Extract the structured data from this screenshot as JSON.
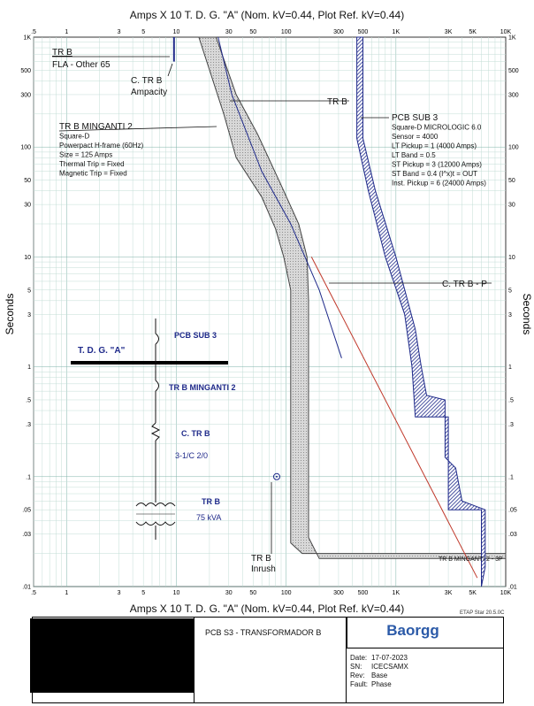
{
  "header": {
    "top_title": "Amps  X  10   T. D. G. \"A\" (Nom. kV=0.44, Plot Ref. kV=0.44)",
    "bottom_title": "Amps  X  10   T. D. G. \"A\" (Nom. kV=0.44, Plot Ref. kV=0.44)",
    "y_axis_label": "Seconds"
  },
  "chart_data": {
    "type": "line",
    "x_scale": "log",
    "y_scale": "log",
    "xlim": [
      0.5,
      10000
    ],
    "ylim": [
      0.01,
      1000
    ],
    "x_ticks": [
      {
        "v": 0.5,
        "label": ".5"
      },
      {
        "v": 1,
        "label": "1"
      },
      {
        "v": 3,
        "label": "3"
      },
      {
        "v": 5,
        "label": "5"
      },
      {
        "v": 10,
        "label": "10"
      },
      {
        "v": 30,
        "label": "30"
      },
      {
        "v": 50,
        "label": "50"
      },
      {
        "v": 100,
        "label": "100"
      },
      {
        "v": 300,
        "label": "300"
      },
      {
        "v": 500,
        "label": "500"
      },
      {
        "v": 1000,
        "label": "1K"
      },
      {
        "v": 3000,
        "label": "3K"
      },
      {
        "v": 5000,
        "label": "5K"
      },
      {
        "v": 10000,
        "label": "10K"
      }
    ],
    "y_ticks": [
      {
        "v": 0.01,
        "label": ".01"
      },
      {
        "v": 0.03,
        "label": ".03"
      },
      {
        "v": 0.05,
        "label": ".05"
      },
      {
        "v": 0.1,
        "label": ".1"
      },
      {
        "v": 0.3,
        "label": ".3"
      },
      {
        "v": 0.5,
        "label": ".5"
      },
      {
        "v": 1,
        "label": "1"
      },
      {
        "v": 3,
        "label": "3"
      },
      {
        "v": 5,
        "label": "5"
      },
      {
        "v": 10,
        "label": "10"
      },
      {
        "v": 30,
        "label": "30"
      },
      {
        "v": 50,
        "label": "50"
      },
      {
        "v": 100,
        "label": "100"
      },
      {
        "v": 300,
        "label": "300"
      },
      {
        "v": 500,
        "label": "500"
      },
      {
        "v": 1000,
        "label": "1K"
      }
    ],
    "grid": true,
    "series": [
      {
        "name": "TR B MINGANTI 2",
        "style": "band",
        "color": "#444444",
        "fill": "#cfcfcf",
        "left": [
          [
            16,
            1000
          ],
          [
            27,
            200
          ],
          [
            35,
            80
          ],
          [
            60,
            35
          ],
          [
            80,
            18
          ],
          [
            95,
            10
          ],
          [
            110,
            5
          ],
          [
            110,
            0.1
          ],
          [
            110,
            0.025
          ],
          [
            140,
            0.02
          ],
          [
            10000,
            0.02
          ]
        ],
        "right": [
          [
            23,
            1000
          ],
          [
            35,
            300
          ],
          [
            55,
            130
          ],
          [
            90,
            45
          ],
          [
            130,
            20
          ],
          [
            155,
            10
          ],
          [
            160,
            4
          ],
          [
            160,
            0.1
          ],
          [
            160,
            0.028
          ],
          [
            200,
            0.018
          ],
          [
            10000,
            0.018
          ]
        ]
      },
      {
        "name": "PCB SUB 3",
        "style": "hatched",
        "color": "#1f2a8a",
        "left": [
          [
            440,
            1000
          ],
          [
            440,
            120
          ],
          [
            560,
            40
          ],
          [
            800,
            10
          ],
          [
            1200,
            3
          ],
          [
            1400,
            1
          ],
          [
            1500,
            0.35
          ],
          [
            3000,
            0.35
          ],
          [
            3000,
            0.1
          ],
          [
            3000,
            0.05
          ],
          [
            6000,
            0.05
          ],
          [
            6000,
            0.01
          ]
        ],
        "right": [
          [
            500,
            1000
          ],
          [
            500,
            120
          ],
          [
            650,
            40
          ],
          [
            1000,
            10
          ],
          [
            1500,
            2.2
          ],
          [
            1700,
            1
          ],
          [
            1900,
            0.55
          ],
          [
            2800,
            0.5
          ],
          [
            2800,
            0.15
          ],
          [
            3500,
            0.12
          ],
          [
            4000,
            0.06
          ],
          [
            6500,
            0.05
          ],
          [
            6500,
            0.015
          ]
        ]
      },
      {
        "name": "TR B",
        "style": "line",
        "color": "#1f2a8a",
        "points": [
          [
            24,
            1000
          ],
          [
            32,
            300
          ],
          [
            60,
            60
          ],
          [
            110,
            20
          ],
          [
            200,
            5
          ],
          [
            320,
            1.2
          ]
        ]
      },
      {
        "name": "C. TR B - P",
        "style": "line",
        "color": "#c0392b",
        "points": [
          [
            170,
            10
          ],
          [
            5500,
            0.012
          ]
        ]
      },
      {
        "name": "C. TR B",
        "style": "vline",
        "color": "#1f2a8a",
        "points": [
          [
            9.5,
            600
          ],
          [
            9.5,
            1000
          ]
        ]
      },
      {
        "name": "TR B Inrush",
        "style": "point",
        "color": "#1f2a8a",
        "points": [
          [
            82,
            0.1
          ]
        ]
      }
    ],
    "annotations": [
      {
        "id": "trb_fla",
        "lines": [
          "TR B",
          "FLA - Other 65"
        ]
      },
      {
        "id": "ctrb_amp",
        "lines": [
          "C. TR B",
          "Ampacity"
        ]
      },
      {
        "id": "trb_label",
        "lines": [
          "TR B"
        ]
      },
      {
        "id": "pcb_sub3",
        "lines": [
          "PCB SUB 3",
          "Square-D  MICROLOGIC 6.0",
          "Sensor = 4000",
          "LT Pickup = 1 (4000 Amps)",
          "LT Band = 0.5",
          "ST Pickup = 3 (12000 Amps)",
          "ST Band = 0.4  (I^x)t = OUT",
          "Inst. Pickup = 6 (24000 Amps)"
        ]
      },
      {
        "id": "trb_minganti",
        "lines": [
          "TR B MINGANTI 2",
          "Square-D",
          "Powerpact H-frame (60Hz)",
          "Size = 125 Amps",
          "Thermal Trip = Fixed",
          "Magnetic Trip = Fixed"
        ]
      },
      {
        "id": "ctrbp",
        "lines": [
          "C. TR B - P"
        ]
      },
      {
        "id": "inrush",
        "lines": [
          "TR B",
          "Inrush"
        ]
      },
      {
        "id": "minganti_low",
        "lines": [
          "TR B MINGANTI 2 - 3P"
        ]
      }
    ]
  },
  "oneline": {
    "bus_label": "T. D. G. \"A\"",
    "pcb_label": "PCB SUB 3",
    "minganti_label": "TR B MINGANTI 2",
    "cable_name": "C. TR B",
    "cable_size": "3-1/C 2/0",
    "xfmr_name": "TR B",
    "xfmr_rating": "75 kVA"
  },
  "title_block": {
    "project": "PCB S3 - TRANSFORMADOR B",
    "logo": "Baorgg",
    "version": "ETAP Star 20.5.0C",
    "fields": [
      {
        "label": "Date:",
        "value": "17-07-2023"
      },
      {
        "label": "SN:",
        "value": "ICECSAMX"
      },
      {
        "label": "Rev:",
        "value": "Base"
      },
      {
        "label": "Fault:",
        "value": "Phase"
      }
    ]
  }
}
